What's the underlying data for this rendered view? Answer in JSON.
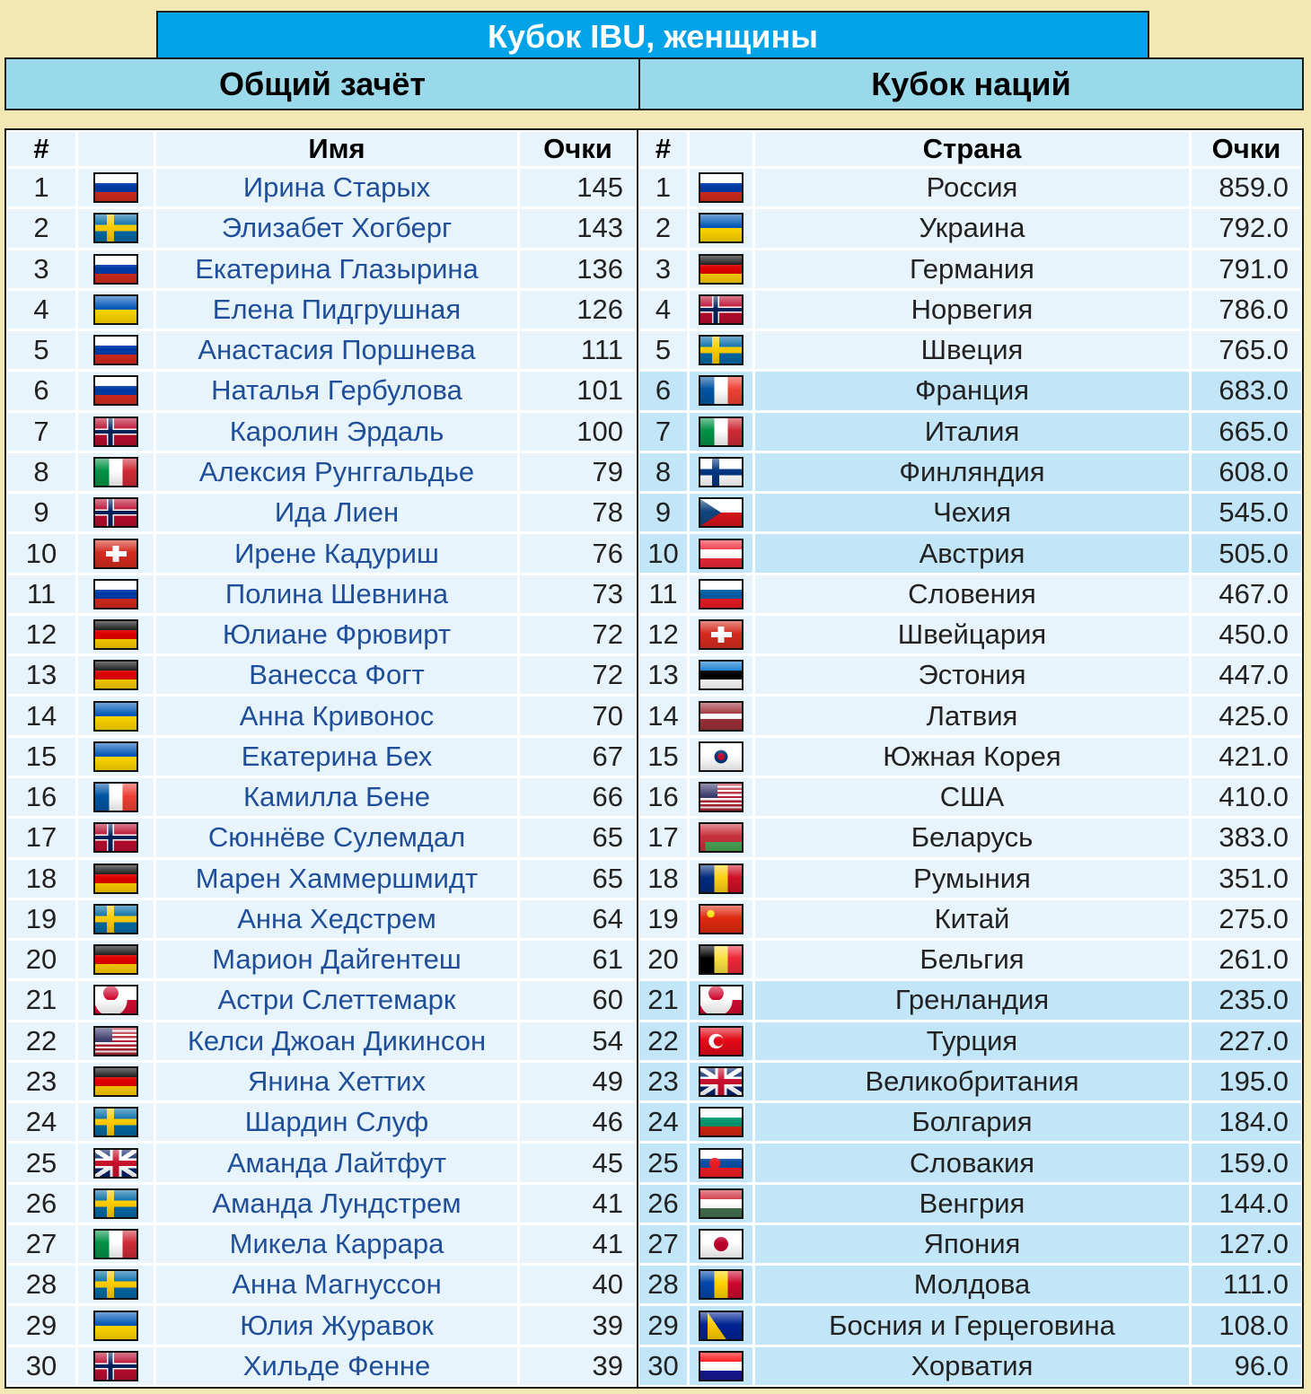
{
  "title": "Кубок IBU, женщины",
  "sections": {
    "overall": "Общий зачёт",
    "nations": "Кубок наций"
  },
  "overall": {
    "headers": [
      "#",
      "",
      "Имя",
      "Очки"
    ],
    "rows": [
      {
        "rank": "1",
        "flag": "rus",
        "name": "Ирина Старых",
        "points": "145"
      },
      {
        "rank": "2",
        "flag": "swe",
        "name": "Элизабет Хогберг",
        "points": "143"
      },
      {
        "rank": "3",
        "flag": "rus",
        "name": "Екатерина Глазырина",
        "points": "136"
      },
      {
        "rank": "4",
        "flag": "ukr",
        "name": "Елена Пидгрушная",
        "points": "126"
      },
      {
        "rank": "5",
        "flag": "rus",
        "name": "Анастасия Поршнева",
        "points": "111"
      },
      {
        "rank": "6",
        "flag": "rus",
        "name": "Наталья Гербулова",
        "points": "101"
      },
      {
        "rank": "7",
        "flag": "nor",
        "name": "Каролин Эрдаль",
        "points": "100"
      },
      {
        "rank": "8",
        "flag": "ita",
        "name": "Алексия Рунггальдье",
        "points": "79"
      },
      {
        "rank": "9",
        "flag": "nor",
        "name": "Ида Лиен",
        "points": "78"
      },
      {
        "rank": "10",
        "flag": "sui",
        "name": "Ирене Кадуриш",
        "points": "76"
      },
      {
        "rank": "11",
        "flag": "rus",
        "name": "Полина Шевнина",
        "points": "73"
      },
      {
        "rank": "12",
        "flag": "ger",
        "name": "Юлиане Фрювирт",
        "points": "72"
      },
      {
        "rank": "13",
        "flag": "ger",
        "name": "Ванесса Фогт",
        "points": "72"
      },
      {
        "rank": "14",
        "flag": "ukr",
        "name": "Анна Кривонос",
        "points": "70"
      },
      {
        "rank": "15",
        "flag": "ukr",
        "name": "Екатерина Бех",
        "points": "67"
      },
      {
        "rank": "16",
        "flag": "fra",
        "name": "Камилла Бене",
        "points": "66"
      },
      {
        "rank": "17",
        "flag": "nor",
        "name": "Сюннёве Сулемдал",
        "points": "65"
      },
      {
        "rank": "18",
        "flag": "ger",
        "name": "Марен Хаммершмидт",
        "points": "65"
      },
      {
        "rank": "19",
        "flag": "swe",
        "name": "Анна Хедстрем",
        "points": "64"
      },
      {
        "rank": "20",
        "flag": "ger",
        "name": "Марион Дайгентеш",
        "points": "61"
      },
      {
        "rank": "21",
        "flag": "grl",
        "name": "Астри Слеттемарк",
        "points": "60"
      },
      {
        "rank": "22",
        "flag": "usa",
        "name": "Келси Джоан Дикинсон",
        "points": "54"
      },
      {
        "rank": "23",
        "flag": "ger",
        "name": "Янина Хеттих",
        "points": "49"
      },
      {
        "rank": "24",
        "flag": "swe",
        "name": "Шардин Слуф",
        "points": "46"
      },
      {
        "rank": "25",
        "flag": "gbr",
        "name": "Аманда Лайтфут",
        "points": "45"
      },
      {
        "rank": "26",
        "flag": "swe",
        "name": "Аманда Лундстрем",
        "points": "41"
      },
      {
        "rank": "27",
        "flag": "ita",
        "name": "Микела Каррара",
        "points": "41"
      },
      {
        "rank": "28",
        "flag": "swe",
        "name": "Анна Магнуссон",
        "points": "40"
      },
      {
        "rank": "29",
        "flag": "ukr",
        "name": "Юлия Журавок",
        "points": "39"
      },
      {
        "rank": "30",
        "flag": "nor",
        "name": "Хильде Фенне",
        "points": "39"
      }
    ]
  },
  "nations": {
    "headers": [
      "#",
      "",
      "Страна",
      "Очки"
    ],
    "rows": [
      {
        "rank": "1",
        "flag": "rus",
        "country": "Россия",
        "points": "859.0",
        "highlighted": false
      },
      {
        "rank": "2",
        "flag": "ukr",
        "country": "Украина",
        "points": "792.0",
        "highlighted": false
      },
      {
        "rank": "3",
        "flag": "ger",
        "country": "Германия",
        "points": "791.0",
        "highlighted": false
      },
      {
        "rank": "4",
        "flag": "nor",
        "country": "Норвегия",
        "points": "786.0",
        "highlighted": false
      },
      {
        "rank": "5",
        "flag": "swe",
        "country": "Швеция",
        "points": "765.0",
        "highlighted": false
      },
      {
        "rank": "6",
        "flag": "fra",
        "country": "Франция",
        "points": "683.0",
        "highlighted": true
      },
      {
        "rank": "7",
        "flag": "ita",
        "country": "Италия",
        "points": "665.0",
        "highlighted": true
      },
      {
        "rank": "8",
        "flag": "fin",
        "country": "Финляндия",
        "points": "608.0",
        "highlighted": true
      },
      {
        "rank": "9",
        "flag": "cze",
        "country": "Чехия",
        "points": "545.0",
        "highlighted": true
      },
      {
        "rank": "10",
        "flag": "aut",
        "country": "Австрия",
        "points": "505.0",
        "highlighted": true
      },
      {
        "rank": "11",
        "flag": "slo",
        "country": "Словения",
        "points": "467.0",
        "highlighted": false
      },
      {
        "rank": "12",
        "flag": "sui",
        "country": "Швейцария",
        "points": "450.0",
        "highlighted": false
      },
      {
        "rank": "13",
        "flag": "est",
        "country": "Эстония",
        "points": "447.0",
        "highlighted": false
      },
      {
        "rank": "14",
        "flag": "lat",
        "country": "Латвия",
        "points": "425.0",
        "highlighted": false
      },
      {
        "rank": "15",
        "flag": "kor",
        "country": "Южная Корея",
        "points": "421.0",
        "highlighted": false
      },
      {
        "rank": "16",
        "flag": "usa",
        "country": "США",
        "points": "410.0",
        "highlighted": false
      },
      {
        "rank": "17",
        "flag": "blr",
        "country": "Беларусь",
        "points": "383.0",
        "highlighted": false
      },
      {
        "rank": "18",
        "flag": "rou",
        "country": "Румыния",
        "points": "351.0",
        "highlighted": false
      },
      {
        "rank": "19",
        "flag": "chn",
        "country": "Китай",
        "points": "275.0",
        "highlighted": false
      },
      {
        "rank": "20",
        "flag": "bel",
        "country": "Бельгия",
        "points": "261.0",
        "highlighted": false
      },
      {
        "rank": "21",
        "flag": "grl",
        "country": "Гренландия",
        "points": "235.0",
        "highlighted": true
      },
      {
        "rank": "22",
        "flag": "tur",
        "country": "Турция",
        "points": "227.0",
        "highlighted": true
      },
      {
        "rank": "23",
        "flag": "gbr",
        "country": "Великобритания",
        "points": "195.0",
        "highlighted": true
      },
      {
        "rank": "24",
        "flag": "bul",
        "country": "Болгария",
        "points": "184.0",
        "highlighted": true
      },
      {
        "rank": "25",
        "flag": "svk",
        "country": "Словакия",
        "points": "159.0",
        "highlighted": true
      },
      {
        "rank": "26",
        "flag": "hun",
        "country": "Венгрия",
        "points": "144.0",
        "highlighted": true
      },
      {
        "rank": "27",
        "flag": "jpn",
        "country": "Япония",
        "points": "127.0",
        "highlighted": true
      },
      {
        "rank": "28",
        "flag": "mda",
        "country": "Молдова",
        "points": "111.0",
        "highlighted": true
      },
      {
        "rank": "29",
        "flag": "bih",
        "country": "Босния и Герцеговина",
        "points": "108.0",
        "highlighted": true
      },
      {
        "rank": "30",
        "flag": "cro",
        "country": "Хорватия",
        "points": "96.0",
        "highlighted": true
      }
    ]
  },
  "colors": {
    "background": "#f3e7b4",
    "title_bg": "#00a2e8",
    "section_bg": "#99d9ea",
    "cell_bg": "#e8f4fb",
    "highlight_bg": "#c2e5f7",
    "link": "#204f9a"
  }
}
